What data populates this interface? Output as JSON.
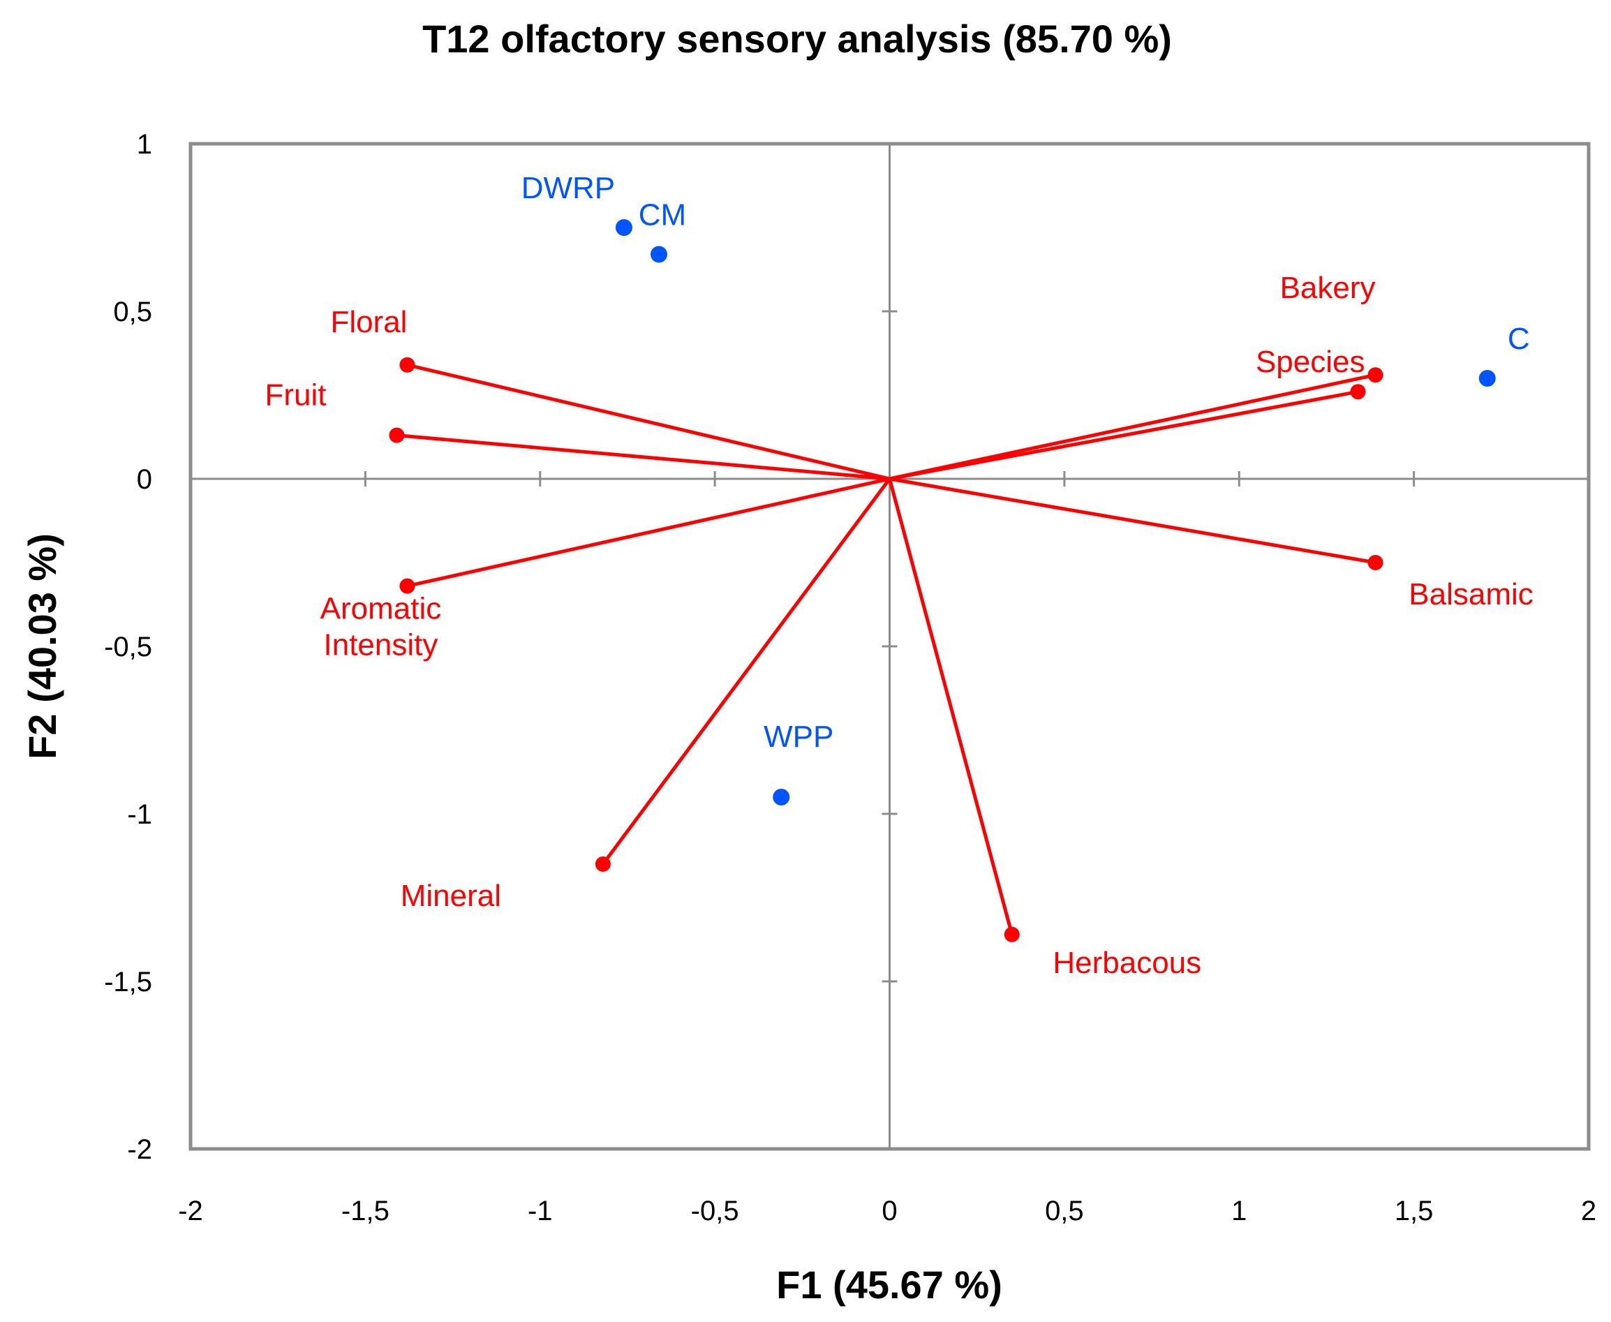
{
  "chart_data": {
    "type": "biplot",
    "title": "T12 olfactory sensory analysis (85.70 %)",
    "xlabel": "F1 (45.67 %)",
    "ylabel": "F2 (40.03 %)",
    "xlim": [
      -2,
      2
    ],
    "ylim": [
      -2,
      1
    ],
    "x_ticks": [
      {
        "value": -2,
        "label": "-2"
      },
      {
        "value": -1.5,
        "label": "-1,5"
      },
      {
        "value": -1,
        "label": "-1"
      },
      {
        "value": -0.5,
        "label": "-0,5"
      },
      {
        "value": 0,
        "label": "0"
      },
      {
        "value": 0.5,
        "label": "0,5"
      },
      {
        "value": 1,
        "label": "1"
      },
      {
        "value": 1.5,
        "label": "1,5"
      },
      {
        "value": 2,
        "label": "2"
      }
    ],
    "y_ticks": [
      {
        "value": 1,
        "label": "1"
      },
      {
        "value": 0.5,
        "label": "0,5"
      },
      {
        "value": 0,
        "label": "0"
      },
      {
        "value": -0.5,
        "label": "-0,5"
      },
      {
        "value": -1,
        "label": "-1"
      },
      {
        "value": -1.5,
        "label": "-1,5"
      },
      {
        "value": -2,
        "label": "-2"
      }
    ],
    "grid": false,
    "variables": {
      "color": "#ff0000",
      "points": [
        {
          "name": "Floral",
          "lines": [
            "Floral"
          ],
          "x": -1.38,
          "y": 0.34
        },
        {
          "name": "Fruit",
          "lines": [
            "Fruit"
          ],
          "x": -1.41,
          "y": 0.13
        },
        {
          "name": "Aromatic Intensity",
          "lines": [
            "Aromatic",
            "Intensity"
          ],
          "x": -1.38,
          "y": -0.32
        },
        {
          "name": "Mineral",
          "lines": [
            "Mineral"
          ],
          "x": -0.82,
          "y": -1.15
        },
        {
          "name": "Herbacous",
          "lines": [
            "Herbacous"
          ],
          "x": 0.35,
          "y": -1.36
        },
        {
          "name": "Balsamic",
          "lines": [
            "Balsamic"
          ],
          "x": 1.39,
          "y": -0.25
        },
        {
          "name": "Bakery",
          "lines": [
            "Bakery"
          ],
          "x": 1.39,
          "y": 0.31
        },
        {
          "name": "Species",
          "lines": [
            "Species"
          ],
          "x": 1.34,
          "y": 0.26
        }
      ]
    },
    "observations": {
      "color": "#0055ff",
      "points": [
        {
          "name": "DWRP",
          "x": -0.76,
          "y": 0.75
        },
        {
          "name": "CM",
          "x": -0.66,
          "y": 0.67
        },
        {
          "name": "C",
          "x": 1.71,
          "y": 0.3
        },
        {
          "name": "WPP",
          "x": -0.31,
          "y": -0.95
        }
      ]
    }
  }
}
